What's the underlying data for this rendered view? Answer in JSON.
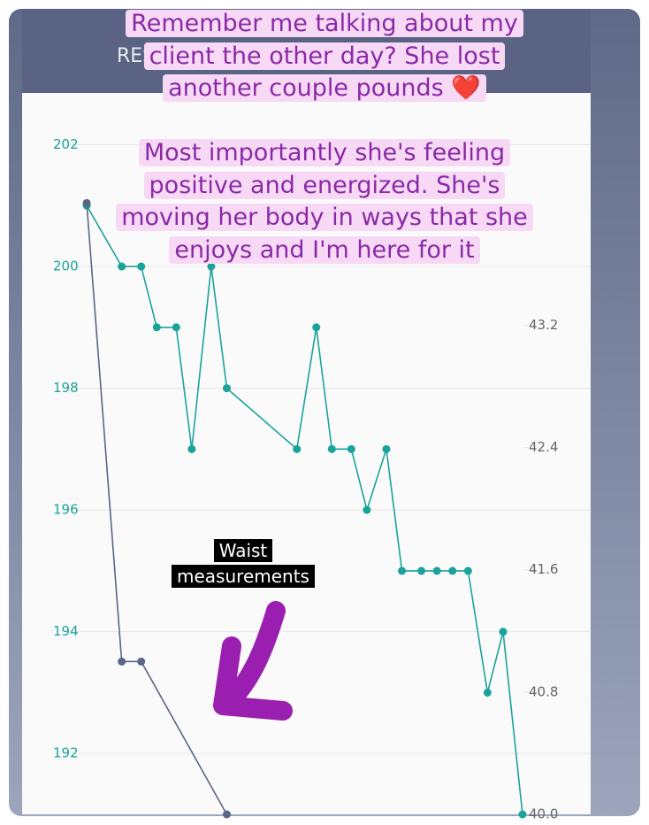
{
  "chart_data": {
    "type": "line",
    "title": "RESU",
    "ylim": [
      191.0,
      202.85
    ],
    "yticks": [
      192,
      194,
      196,
      198,
      200,
      202
    ],
    "y2lim": [
      40.0,
      44.72
    ],
    "y2ticks": [
      {
        "value": 40,
        "label": "40.0"
      },
      40.8,
      41.6,
      42.4,
      43.2
    ],
    "xlim": [
      -16.6,
      129.5
    ],
    "grid": true,
    "series": [
      {
        "color": "#1aa39a",
        "x": [
          0,
          9,
          14,
          18,
          23,
          27,
          32,
          36,
          54,
          59,
          63,
          68,
          72,
          77,
          81,
          86,
          90,
          94,
          98,
          103,
          107,
          112
        ],
        "values": [
          201,
          200,
          200,
          199,
          199,
          197,
          200,
          198,
          197,
          199,
          197,
          197,
          196,
          197,
          195,
          195,
          195,
          195,
          195,
          193,
          194,
          191
        ]
      },
      {
        "color": "#5a6683",
        "axis": "y2",
        "x": [
          0,
          9,
          14,
          36
        ],
        "values": [
          44.0,
          41.0,
          41.0,
          40.0
        ]
      }
    ],
    "annotations": [
      [
        "Remember me talking about my",
        "client the other day? She lost",
        "another couple pounds ❤️"
      ],
      [
        "Most importantly she's feeling",
        "positive and energized. She's",
        "moving her body in ways that she",
        "enjoys and I'm here for it"
      ],
      [
        "Waist",
        "measurements"
      ]
    ]
  }
}
